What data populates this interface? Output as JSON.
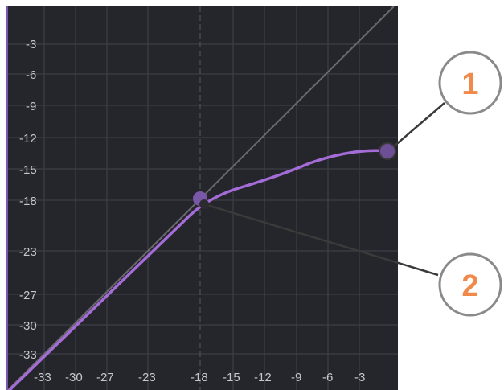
{
  "graph": {
    "name": "compressor-transfer-curve",
    "background": "#25252c",
    "grid_color": "#3e3e46",
    "curve_color": "#a46cd6",
    "diagonal_color": "#6a6a6e",
    "handle_color": "#7a58a8",
    "y_ticks": [
      "-3",
      "-6",
      "-9",
      "-12",
      "-15",
      "-18",
      "-23",
      "-27",
      "-30",
      "-33"
    ],
    "x_ticks": [
      "-33",
      "-30",
      "-27",
      "-23",
      "-18",
      "-15",
      "-12",
      "-9",
      "-6",
      "-3"
    ]
  },
  "callouts": [
    {
      "label": "1",
      "target": "ratio-handle"
    },
    {
      "label": "2",
      "target": "threshold-handle"
    }
  ],
  "accent_color": "#f08a4b",
  "ring_color": "#8a8a8a"
}
